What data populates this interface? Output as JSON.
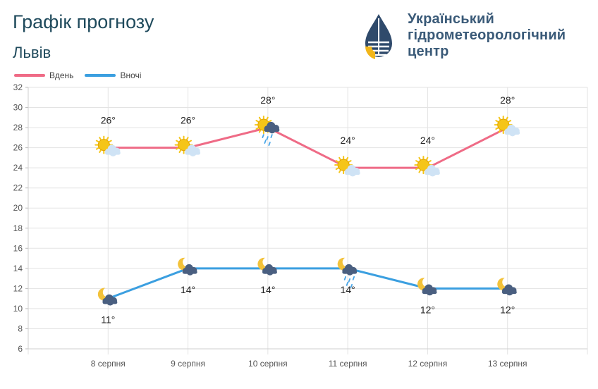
{
  "header": {
    "title": "Графік прогнозу",
    "city": "Львів"
  },
  "organization": {
    "line1": "Український",
    "line2": "гідрометеорологічний",
    "line3": "центр"
  },
  "colors": {
    "day": "#ef6b86",
    "night": "#3b9fe0",
    "grid": "#e3e3e3",
    "sun": "#f5c518",
    "cloud_light": "#cfe3f5",
    "cloud_dark": "#4a5f80",
    "moon": "#f3c23a",
    "rain": "#4aa6e8"
  },
  "legend": {
    "day": "Вдень",
    "night": "Вночі"
  },
  "chart_data": {
    "type": "line",
    "categories": [
      "8 серпня",
      "9 серпня",
      "10 серпня",
      "11 серпня",
      "12 серпня",
      "13 серпня"
    ],
    "series": [
      {
        "name": "Вдень",
        "values": [
          26,
          26,
          28,
          24,
          24,
          28
        ],
        "labels": [
          "26°",
          "26°",
          "28°",
          "24°",
          "24°",
          "28°"
        ],
        "icons": [
          "sun-cloud-icon",
          "sun-cloud-icon",
          "sun-storm-rain-icon",
          "sun-cloud-icon",
          "sun-cloud-icon",
          "sun-cloud-icon"
        ]
      },
      {
        "name": "Вночі",
        "values": [
          11,
          14,
          14,
          14,
          12,
          12
        ],
        "labels": [
          "11°",
          "14°",
          "14°",
          "14°",
          "12°",
          "12°"
        ],
        "icons": [
          "moon-cloud-icon",
          "moon-cloud-icon",
          "moon-cloud-icon",
          "moon-cloud-rain-icon",
          "moon-cloud-icon",
          "moon-cloud-icon"
        ]
      }
    ],
    "ylim": [
      6,
      32
    ],
    "yticks": [
      6,
      8,
      10,
      12,
      14,
      16,
      18,
      20,
      22,
      24,
      26,
      28,
      30,
      32
    ],
    "grid": true,
    "legend_position": "top-left"
  }
}
